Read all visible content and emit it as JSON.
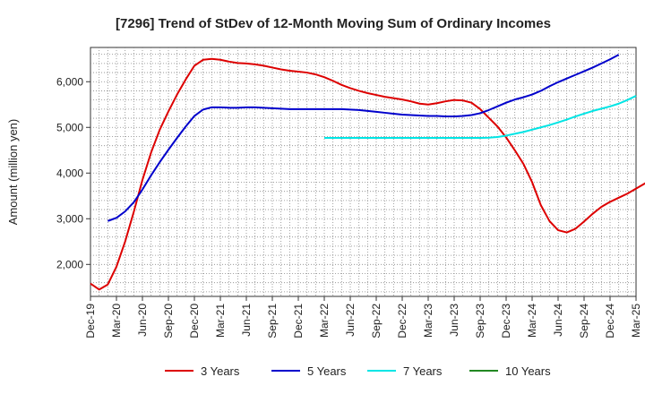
{
  "chart_data": {
    "type": "line",
    "title": "[7296]  Trend of StDev of 12-Month Moving Sum of Ordinary Incomes",
    "xlabel": "",
    "ylabel": "Amount (million yen)",
    "x_ticks": [
      "Dec-19",
      "Mar-20",
      "Jun-20",
      "Sep-20",
      "Dec-20",
      "Mar-21",
      "Jun-21",
      "Sep-21",
      "Dec-21",
      "Mar-22",
      "Jun-22",
      "Sep-22",
      "Dec-22",
      "Mar-23",
      "Jun-23",
      "Sep-23",
      "Dec-23",
      "Mar-24",
      "Jun-24",
      "Sep-24",
      "Dec-24",
      "Mar-25"
    ],
    "y_ticks": [
      2000,
      3000,
      4000,
      5000,
      6000
    ],
    "y_tick_labels": [
      "2,000",
      "3,000",
      "4,000",
      "5,000",
      "6,000"
    ],
    "ylim": [
      1300,
      6750
    ],
    "grid": true,
    "legend_position": "bottom",
    "series": [
      {
        "name": "3 Years",
        "color": "#dd0000",
        "start_month_index": 0,
        "values": [
          1580,
          1450,
          1560,
          1950,
          2500,
          3150,
          3850,
          4450,
          4950,
          5350,
          5720,
          6050,
          6350,
          6480,
          6500,
          6480,
          6440,
          6410,
          6400,
          6380,
          6350,
          6310,
          6270,
          6240,
          6220,
          6200,
          6160,
          6100,
          6020,
          5930,
          5860,
          5800,
          5750,
          5710,
          5670,
          5640,
          5610,
          5570,
          5520,
          5500,
          5530,
          5570,
          5600,
          5590,
          5540,
          5400,
          5210,
          5020,
          4780,
          4500,
          4200,
          3800,
          3300,
          2950,
          2750,
          2700,
          2780,
          2940,
          3110,
          3260,
          3370,
          3460,
          3550,
          3660,
          3770,
          3900
        ]
      },
      {
        "name": "5 Years",
        "color": "#0000cc",
        "start_month_index": 2,
        "values": [
          2950,
          3020,
          3160,
          3360,
          3640,
          3950,
          4240,
          4510,
          4770,
          5020,
          5250,
          5390,
          5440,
          5440,
          5430,
          5430,
          5440,
          5440,
          5430,
          5420,
          5410,
          5400,
          5400,
          5400,
          5400,
          5400,
          5400,
          5400,
          5390,
          5380,
          5360,
          5340,
          5320,
          5300,
          5280,
          5270,
          5260,
          5250,
          5250,
          5240,
          5240,
          5250,
          5270,
          5310,
          5380,
          5460,
          5540,
          5610,
          5660,
          5720,
          5800,
          5900,
          5990,
          6070,
          6150,
          6230,
          6310,
          6400,
          6490,
          6590
        ]
      },
      {
        "name": "7 Years",
        "color": "#00e5e5",
        "start_month_index": 27,
        "values": [
          4770,
          4770,
          4770,
          4770,
          4770,
          4770,
          4770,
          4770,
          4770,
          4770,
          4770,
          4770,
          4770,
          4770,
          4770,
          4770,
          4770,
          4770,
          4770,
          4775,
          4790,
          4820,
          4860,
          4900,
          4950,
          5000,
          5050,
          5110,
          5170,
          5240,
          5300,
          5360,
          5410,
          5460,
          5520,
          5600,
          5690
        ]
      },
      {
        "name": "10 Years",
        "color": "#228822",
        "start_month_index": 0,
        "values": []
      }
    ]
  }
}
